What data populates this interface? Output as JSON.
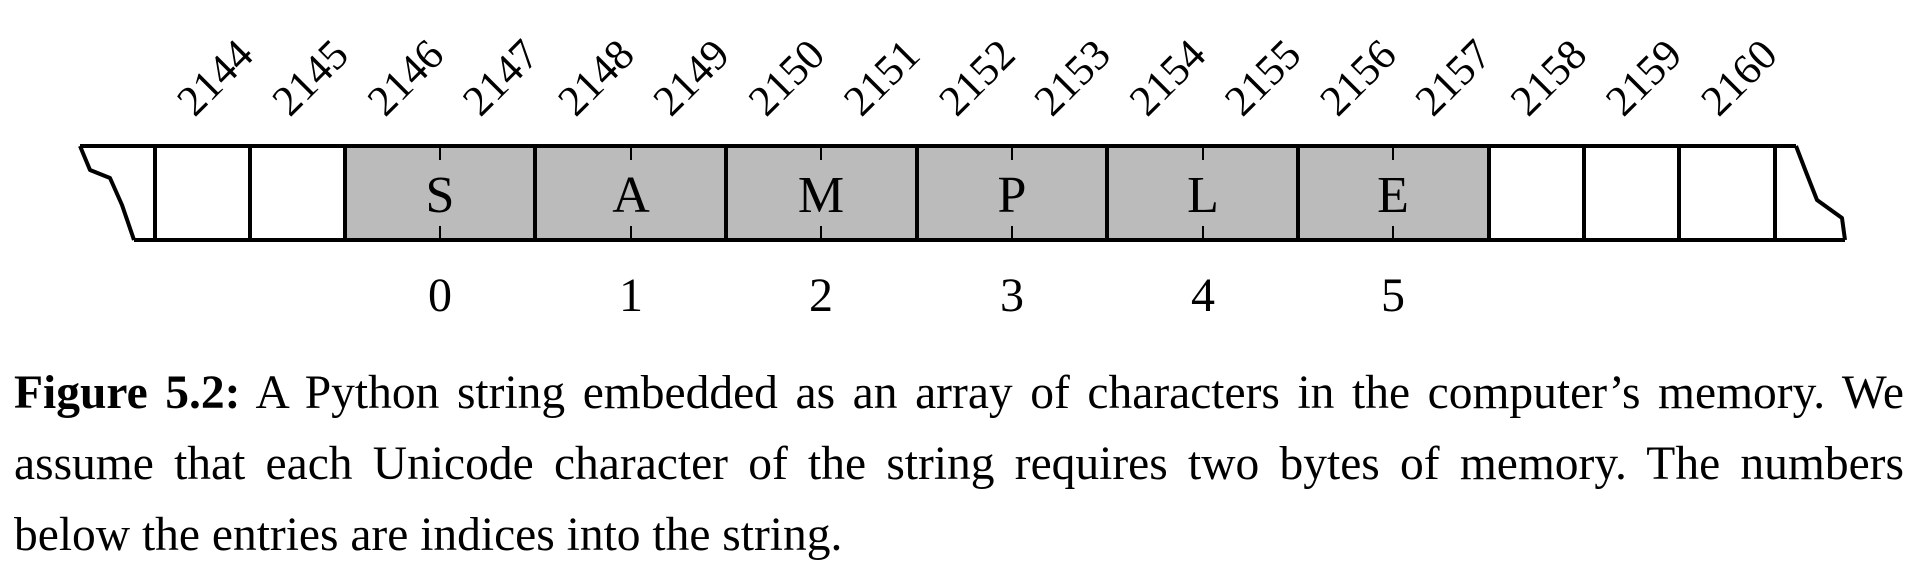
{
  "figure": {
    "addresses": [
      "2144",
      "2145",
      "2146",
      "2147",
      "2148",
      "2149",
      "2150",
      "2151",
      "2152",
      "2153",
      "2154",
      "2155",
      "2156",
      "2157",
      "2158",
      "2159",
      "2160"
    ],
    "characters": [
      "S",
      "A",
      "M",
      "P",
      "L",
      "E"
    ],
    "indices": [
      "0",
      "1",
      "2",
      "3",
      "4",
      "5"
    ],
    "caption_label": "Figure 5.2:",
    "caption_text": " A Python string embedded as an array of characters in the computer’s memory. We assume that each Unicode character of the string requires two bytes of memory. The numbers below the entries are indices into the string.",
    "colors": {
      "filled_cell": "#bbbbbb",
      "empty_cell": "#ffffff",
      "stroke": "#000000"
    }
  }
}
